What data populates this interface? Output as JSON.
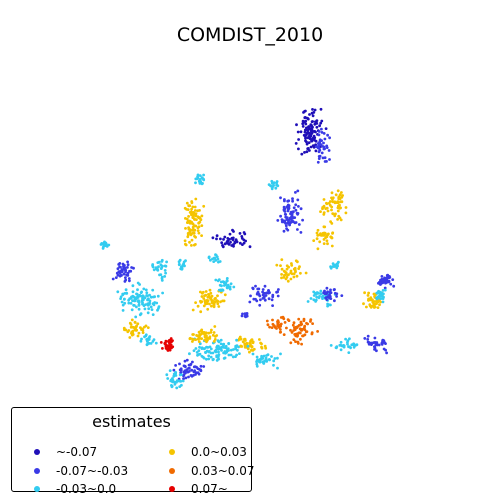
{
  "title": "COMDIST_2010",
  "legend": {
    "title": "estimates",
    "items": [
      {
        "label": "~-0.07",
        "color": "#1f0fb8"
      },
      {
        "label": "-0.07~-0.03",
        "color": "#3a3ae6"
      },
      {
        "label": "-0.03~0.0",
        "color": "#33ccf0"
      },
      {
        "label": "0.0~0.03",
        "color": "#f5c400"
      },
      {
        "label": "0.03~0.07",
        "color": "#f06a00"
      },
      {
        "label": "0.07~",
        "color": "#e60000"
      }
    ]
  }
}
